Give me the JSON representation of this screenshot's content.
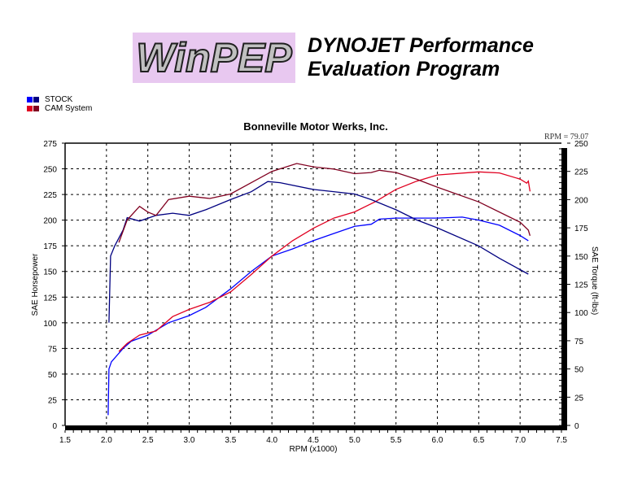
{
  "header": {
    "logo_text": "WinPEP",
    "line1": "DYNOJET Performance",
    "line2": "Evaluation Program"
  },
  "legend": [
    {
      "label": "STOCK",
      "hp_color": "#0000ff",
      "tq_color": "#000080"
    },
    {
      "label": "CAM System",
      "hp_color": "#e00020",
      "tq_color": "#800020"
    }
  ],
  "chart_data": {
    "type": "line",
    "title": "Bonneville Motor Werks, Inc.",
    "annotation": "RPM = 79.07",
    "xlabel": "RPM (x1000)",
    "ylabel": "SAE Horsepower",
    "y2label": "SAE Torque (ft-lbs)",
    "xlim": [
      1.5,
      7.5
    ],
    "ylim": [
      0,
      275
    ],
    "y2lim": [
      0,
      250
    ],
    "xticks": [
      "1.5",
      "2.0",
      "2.5",
      "3.0",
      "3.5",
      "4.0",
      "4.5",
      "5.0",
      "5.5",
      "6.0",
      "6.5",
      "7.0",
      "7.5"
    ],
    "yticks": [
      "0",
      "25",
      "50",
      "75",
      "100",
      "125",
      "150",
      "175",
      "200",
      "225",
      "250",
      "275"
    ],
    "y2ticks": [
      "0",
      "25",
      "50",
      "75",
      "100",
      "125",
      "150",
      "175",
      "200",
      "225",
      "250"
    ],
    "grid": true,
    "series": [
      {
        "name": "STOCK HP",
        "axis": "left",
        "color": "#0000ff",
        "x": [
          2.02,
          2.03,
          2.06,
          2.2,
          2.3,
          2.5,
          2.75,
          3.0,
          3.2,
          3.5,
          3.75,
          4.0,
          4.25,
          4.5,
          4.75,
          5.0,
          5.2,
          5.3,
          5.5,
          6.0,
          6.3,
          6.5,
          6.75,
          7.0,
          7.1
        ],
        "y": [
          10,
          55,
          62,
          75,
          82,
          88,
          100,
          107,
          115,
          133,
          150,
          165,
          172,
          180,
          187,
          194,
          196,
          201,
          202,
          202,
          203,
          200,
          195,
          185,
          180
        ]
      },
      {
        "name": "CAM System HP",
        "axis": "left",
        "color": "#e00020",
        "x": [
          2.15,
          2.25,
          2.4,
          2.6,
          2.8,
          3.0,
          3.25,
          3.5,
          3.75,
          4.0,
          4.25,
          4.5,
          4.75,
          5.0,
          5.25,
          5.5,
          5.75,
          6.0,
          6.5,
          6.75,
          7.0,
          7.08,
          7.1,
          7.12
        ],
        "y": [
          72,
          80,
          88,
          92,
          106,
          113,
          120,
          130,
          147,
          165,
          180,
          192,
          202,
          208,
          218,
          230,
          238,
          244,
          247,
          246,
          240,
          236,
          238,
          228
        ]
      },
      {
        "name": "STOCK Torque",
        "axis": "right",
        "color": "#000080",
        "x": [
          2.03,
          2.05,
          2.1,
          2.2,
          2.25,
          2.4,
          2.6,
          2.8,
          3.0,
          3.2,
          3.5,
          3.75,
          3.95,
          4.1,
          4.5,
          5.0,
          5.2,
          5.5,
          5.75,
          6.0,
          6.5,
          6.75,
          7.0,
          7.1
        ],
        "y": [
          91,
          150,
          159,
          173,
          184,
          181,
          186,
          188,
          186,
          191,
          200,
          207,
          216,
          215,
          209,
          205,
          200,
          191,
          182,
          175,
          159,
          148,
          138,
          134
        ]
      },
      {
        "name": "CAM System Torque",
        "axis": "right",
        "color": "#800020",
        "x": [
          2.15,
          2.25,
          2.4,
          2.5,
          2.6,
          2.75,
          3.0,
          3.25,
          3.5,
          3.75,
          4.0,
          4.3,
          4.5,
          4.75,
          5.0,
          5.2,
          5.3,
          5.5,
          5.75,
          6.0,
          6.5,
          7.0,
          7.1,
          7.12
        ],
        "y": [
          162,
          182,
          194,
          189,
          186,
          200,
          203,
          201,
          205,
          215,
          225,
          232,
          229,
          227,
          223,
          224,
          226,
          224,
          218,
          211,
          198,
          180,
          173,
          168
        ]
      }
    ]
  }
}
